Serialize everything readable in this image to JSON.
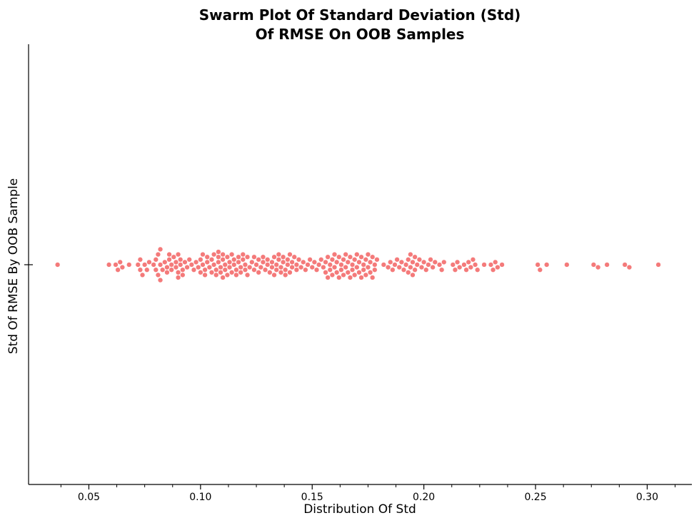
{
  "chart_data": {
    "type": "scatter",
    "subtype": "swarm",
    "title_line1": "Swarm Plot Of Standard Deviation (Std)",
    "title_line2": "Of RMSE On OOB Samples",
    "xlabel": "Distribution Of Std",
    "ylabel": "Std Of RMSE By OOB Sample",
    "xlim": [
      0.023,
      0.32
    ],
    "xticks": [
      "0.05",
      "0.10",
      "0.15",
      "0.20",
      "0.25",
      "0.30"
    ],
    "xtick_values": [
      0.05,
      0.1,
      0.15,
      0.2,
      0.25,
      0.3
    ],
    "minor_xticks": [
      0.0375,
      0.0625,
      0.075,
      0.0875,
      0.1125,
      0.125,
      0.1375,
      0.1625,
      0.175,
      0.1875,
      0.2125,
      0.225,
      0.2375,
      0.2625,
      0.275,
      0.2875,
      0.3125
    ],
    "point_color": "#f47a7a",
    "grid": false,
    "x": [
      0.036,
      0.059,
      0.062,
      0.063,
      0.064,
      0.065,
      0.068,
      0.072,
      0.073,
      0.073,
      0.074,
      0.075,
      0.076,
      0.077,
      0.079,
      0.08,
      0.08,
      0.081,
      0.081,
      0.082,
      0.082,
      0.082,
      0.083,
      0.084,
      0.085,
      0.085,
      0.086,
      0.086,
      0.087,
      0.087,
      0.088,
      0.089,
      0.089,
      0.09,
      0.09,
      0.09,
      0.091,
      0.091,
      0.092,
      0.092,
      0.093,
      0.094,
      0.095,
      0.096,
      0.097,
      0.098,
      0.099,
      0.1,
      0.1,
      0.101,
      0.101,
      0.102,
      0.102,
      0.103,
      0.103,
      0.104,
      0.105,
      0.105,
      0.106,
      0.106,
      0.107,
      0.107,
      0.108,
      0.108,
      0.108,
      0.109,
      0.109,
      0.11,
      0.11,
      0.11,
      0.111,
      0.111,
      0.112,
      0.112,
      0.113,
      0.113,
      0.114,
      0.114,
      0.115,
      0.115,
      0.116,
      0.116,
      0.117,
      0.117,
      0.118,
      0.118,
      0.119,
      0.119,
      0.12,
      0.12,
      0.121,
      0.121,
      0.122,
      0.123,
      0.124,
      0.124,
      0.125,
      0.126,
      0.126,
      0.127,
      0.128,
      0.128,
      0.129,
      0.13,
      0.13,
      0.131,
      0.132,
      0.132,
      0.133,
      0.133,
      0.134,
      0.134,
      0.135,
      0.135,
      0.136,
      0.136,
      0.137,
      0.137,
      0.138,
      0.138,
      0.139,
      0.139,
      0.14,
      0.14,
      0.141,
      0.141,
      0.142,
      0.143,
      0.143,
      0.144,
      0.145,
      0.146,
      0.147,
      0.148,
      0.149,
      0.15,
      0.151,
      0.152,
      0.153,
      0.154,
      0.155,
      0.156,
      0.156,
      0.157,
      0.157,
      0.158,
      0.158,
      0.159,
      0.159,
      0.16,
      0.16,
      0.161,
      0.161,
      0.162,
      0.162,
      0.163,
      0.163,
      0.164,
      0.164,
      0.165,
      0.165,
      0.166,
      0.166,
      0.167,
      0.167,
      0.168,
      0.168,
      0.169,
      0.169,
      0.17,
      0.17,
      0.171,
      0.171,
      0.172,
      0.172,
      0.173,
      0.173,
      0.174,
      0.174,
      0.175,
      0.175,
      0.176,
      0.176,
      0.177,
      0.177,
      0.178,
      0.178,
      0.179,
      0.182,
      0.184,
      0.185,
      0.186,
      0.187,
      0.188,
      0.189,
      0.19,
      0.191,
      0.192,
      0.193,
      0.193,
      0.194,
      0.194,
      0.195,
      0.195,
      0.196,
      0.196,
      0.197,
      0.198,
      0.199,
      0.2,
      0.201,
      0.202,
      0.203,
      0.204,
      0.205,
      0.207,
      0.208,
      0.209,
      0.213,
      0.214,
      0.215,
      0.216,
      0.218,
      0.219,
      0.22,
      0.221,
      0.222,
      0.223,
      0.224,
      0.227,
      0.23,
      0.231,
      0.232,
      0.233,
      0.235,
      0.251,
      0.252,
      0.255,
      0.264,
      0.276,
      0.278,
      0.282,
      0.29,
      0.292,
      0.305
    ]
  }
}
